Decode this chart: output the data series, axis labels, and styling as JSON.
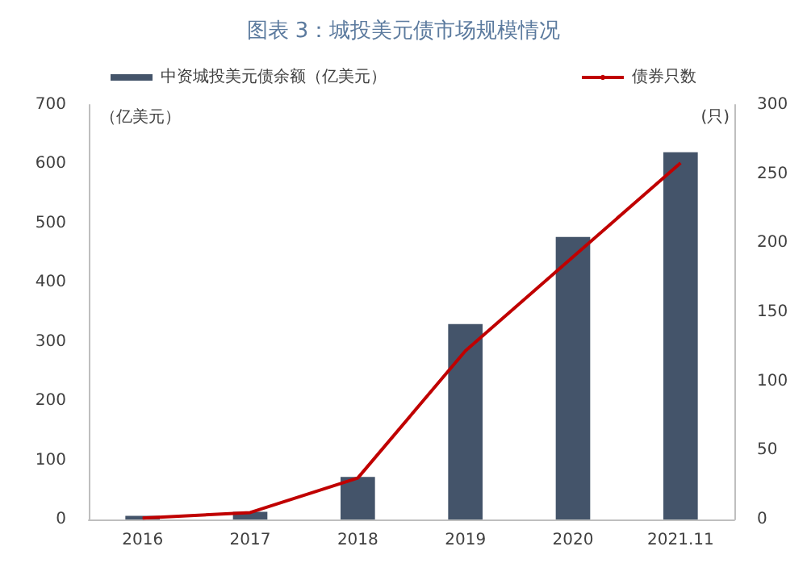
{
  "chart_data": {
    "type": "bar",
    "title": "图表 3：城投美元债市场规模情况",
    "categories": [
      "2016",
      "2017",
      "2018",
      "2019",
      "2020",
      "2021.11"
    ],
    "series": [
      {
        "name": "中资城投美元债余额（亿美元）",
        "color": "#44546a",
        "values": [
          6,
          13,
          72,
          330,
          477,
          620
        ]
      },
      {
        "name": "债券只数",
        "type": "line",
        "axis": "y2",
        "color": "#c00000",
        "values": [
          1,
          5,
          30,
          122,
          190,
          258
        ]
      }
    ],
    "ylabel": "（亿美元）",
    "y2label": "(只)",
    "ylim": [
      0,
      700
    ],
    "yticks": [
      0,
      100,
      200,
      300,
      400,
      500,
      600,
      700
    ],
    "y2lim": [
      0,
      300
    ],
    "y2ticks": [
      0,
      50,
      100,
      150,
      200,
      250,
      300
    ],
    "legend": "top",
    "grid": false,
    "marker": "none"
  }
}
